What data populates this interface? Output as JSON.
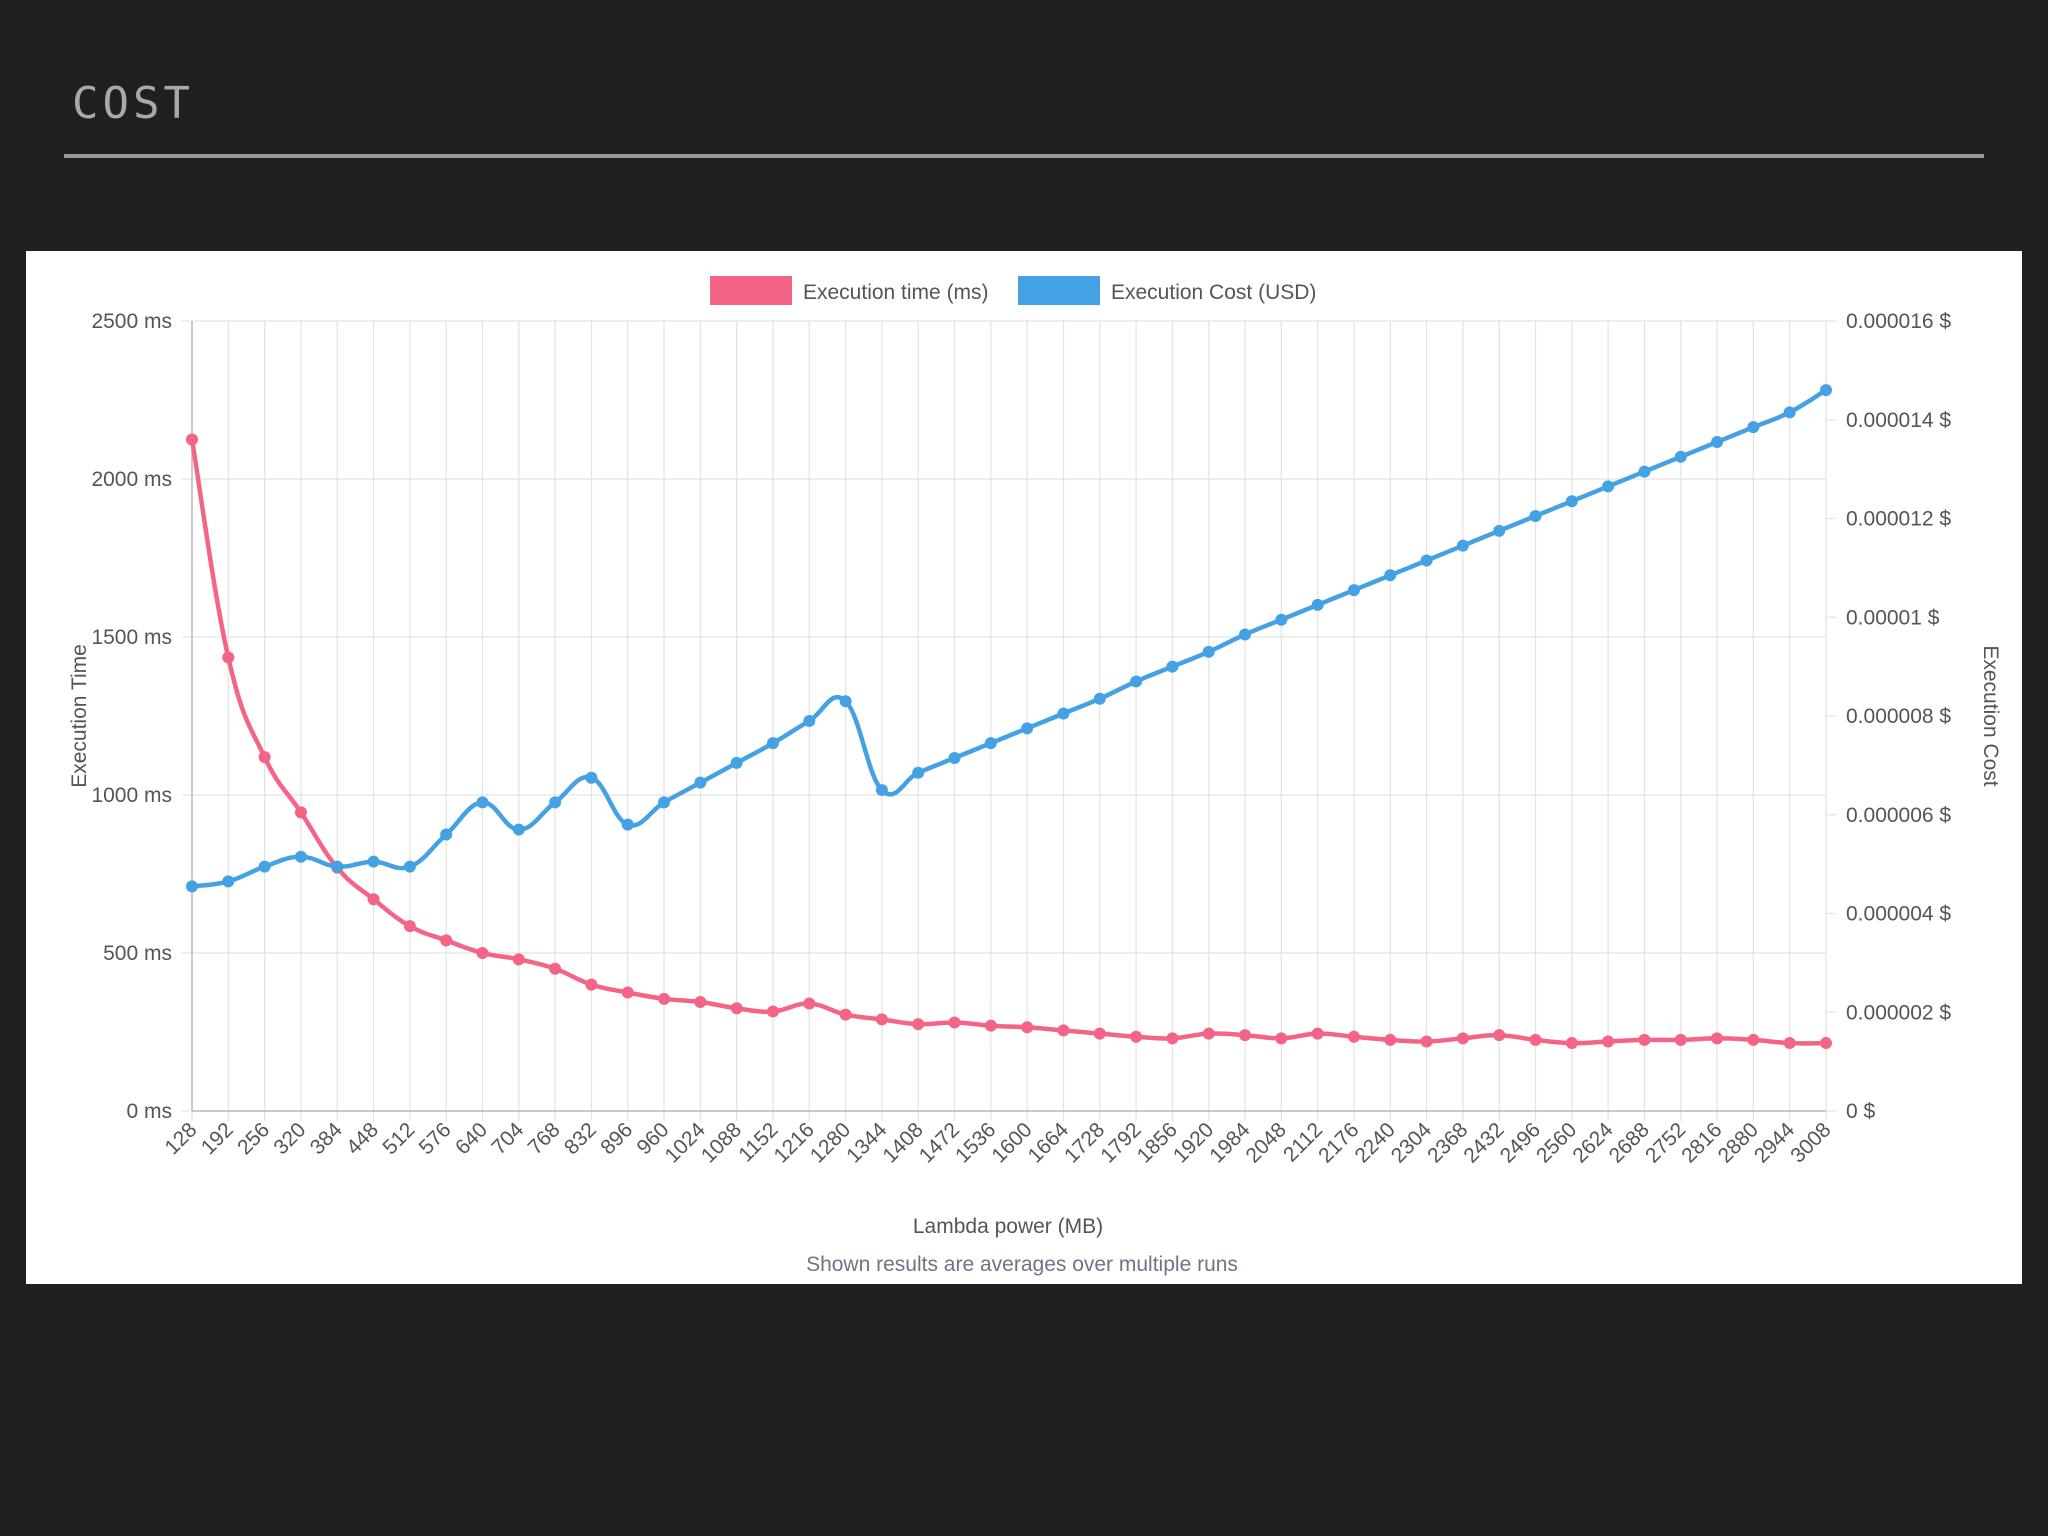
{
  "slide": {
    "title": "COST"
  },
  "colors": {
    "background": "#211f21",
    "time": "#f46486",
    "cost": "#44a2e4",
    "grid": "#e4e4e4",
    "text": "#555555",
    "footnote": "#6b7585"
  },
  "chart_data": {
    "type": "line",
    "legend_position": "top",
    "grid": true,
    "xlabel": "Lambda power (MB)",
    "footnote": "Shown results are averages over multiple runs",
    "categories": [
      "128",
      "192",
      "256",
      "320",
      "384",
      "448",
      "512",
      "576",
      "640",
      "704",
      "768",
      "832",
      "896",
      "960",
      "1024",
      "1088",
      "1152",
      "1216",
      "1280",
      "1344",
      "1408",
      "1472",
      "1536",
      "1600",
      "1664",
      "1728",
      "1792",
      "1856",
      "1920",
      "1984",
      "2048",
      "2112",
      "2176",
      "2240",
      "2304",
      "2368",
      "2432",
      "2496",
      "2560",
      "2624",
      "2688",
      "2752",
      "2816",
      "2880",
      "2944",
      "3008"
    ],
    "y_left": {
      "label": "Execution Time",
      "min": 0,
      "max": 2500,
      "ticks": [
        "0 ms",
        "500 ms",
        "1000 ms",
        "1500 ms",
        "2000 ms",
        "2500 ms"
      ],
      "tick_values": [
        0,
        500,
        1000,
        1500,
        2000,
        2500
      ]
    },
    "y_right": {
      "label": "Execution Cost",
      "min": 0,
      "max": 1.6e-05,
      "ticks": [
        "0 $",
        "0.000002 $",
        "0.000004 $",
        "0.000006 $",
        "0.000008 $",
        "0.00001 $",
        "0.000012 $",
        "0.000014 $",
        "0.000016 $"
      ],
      "tick_values": [
        0,
        2e-06,
        4e-06,
        6e-06,
        8e-06,
        1e-05,
        1.2e-05,
        1.4e-05,
        1.6e-05
      ]
    },
    "series": [
      {
        "name": "Execution time (ms)",
        "axis": "left",
        "color": "#f46486",
        "values": [
          2125,
          1435,
          1120,
          945,
          770,
          670,
          585,
          540,
          500,
          480,
          450,
          400,
          375,
          355,
          345,
          325,
          315,
          340,
          305,
          290,
          275,
          280,
          270,
          265,
          255,
          245,
          235,
          230,
          245,
          240,
          230,
          245,
          235,
          225,
          220,
          230,
          240,
          225,
          215,
          220,
          225,
          225,
          230,
          225,
          215,
          215
        ]
      },
      {
        "name": "Execution Cost (USD)",
        "axis": "right",
        "color": "#44a2e4",
        "values": [
          4.55e-06,
          4.65e-06,
          4.95e-06,
          5.15e-06,
          4.95e-06,
          5.05e-06,
          4.95e-06,
          5.6e-06,
          6.25e-06,
          5.7e-06,
          6.25e-06,
          6.75e-06,
          5.8e-06,
          6.25e-06,
          6.65e-06,
          7.05e-06,
          7.45e-06,
          7.9e-06,
          8.3e-06,
          6.5e-06,
          6.85e-06,
          7.15e-06,
          7.45e-06,
          7.75e-06,
          8.05e-06,
          8.35e-06,
          8.7e-06,
          9e-06,
          9.3e-06,
          9.65e-06,
          9.95e-06,
          1.025e-05,
          1.055e-05,
          1.085e-05,
          1.115e-05,
          1.145e-05,
          1.175e-05,
          1.205e-05,
          1.235e-05,
          1.265e-05,
          1.295e-05,
          1.325e-05,
          1.355e-05,
          1.385e-05,
          1.415e-05,
          1.46e-05
        ]
      }
    ]
  }
}
